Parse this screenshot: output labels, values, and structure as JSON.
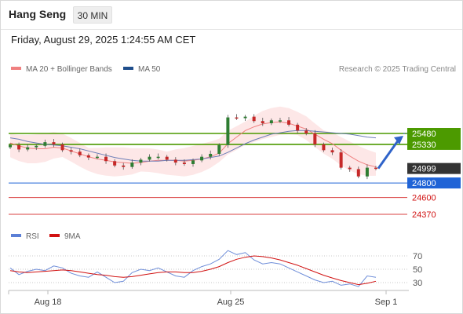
{
  "header": {
    "title": "Hang Seng",
    "timeframe": "30 MIN",
    "datetime": "Friday, August 29, 2025 1:24:55 AM CET"
  },
  "legend": {
    "items": [
      {
        "label": "MA 20 + Bollinger Bands",
        "color": "#f08080"
      },
      {
        "label": "MA 50",
        "color": "#1f4e8c"
      }
    ],
    "copyright": "Research © 2025 Trading Central"
  },
  "rsi_legend": {
    "items": [
      {
        "label": "RSI",
        "color": "#5b7fd6"
      },
      {
        "label": "9MA",
        "color": "#d11111"
      }
    ]
  },
  "x_axis": {
    "labels": [
      "Aug 18",
      "Aug 25",
      "Sep 1"
    ]
  },
  "chart_data": [
    {
      "type": "line",
      "title": "",
      "price_levels": [
        {
          "value": 25480,
          "label": "25480",
          "color": "#4c9a00",
          "kind": "resistance"
        },
        {
          "value": 25330,
          "label": "25330",
          "color": "#4c9a00",
          "kind": "resistance"
        },
        {
          "value": 24999,
          "label": "24999",
          "color": "#333333",
          "kind": "last"
        },
        {
          "value": 24800,
          "label": "24800",
          "color": "#1f63d6",
          "kind": "pivot"
        },
        {
          "value": 24600,
          "label": "24600",
          "color": "#d11111",
          "kind": "support"
        },
        {
          "value": 24370,
          "label": "24370",
          "color": "#d11111",
          "kind": "support"
        }
      ],
      "series": [
        {
          "name": "Price",
          "values": [
            25320,
            25260,
            25290,
            25310,
            25360,
            25330,
            25250,
            25230,
            25180,
            25150,
            25160,
            25100,
            25040,
            25020,
            25080,
            25120,
            25160,
            25160,
            25120,
            25080,
            25060,
            25110,
            25160,
            25200,
            25320,
            25700,
            25690,
            25710,
            25650,
            25620,
            25660,
            25660,
            25600,
            25520,
            25480,
            25330,
            25250,
            25220,
            25010,
            24990,
            24890,
            25010,
            24999
          ]
        },
        {
          "name": "MA 20",
          "values": [
            25350,
            25310,
            25280,
            25270,
            25270,
            25290,
            25280,
            25240,
            25200,
            25160,
            25130,
            25110,
            25090,
            25080,
            25070,
            25080,
            25100,
            25110,
            25110,
            25110,
            25100,
            25110,
            25130,
            25160,
            25210,
            25340,
            25430,
            25520,
            25570,
            25610,
            25630,
            25640,
            25620,
            25580,
            25540,
            25470,
            25400,
            25340,
            25250,
            25170,
            25100,
            25050,
            25020
          ]
        },
        {
          "name": "MA 50",
          "values": [
            25420,
            25400,
            25370,
            25350,
            25330,
            25320,
            25310,
            25290,
            25270,
            25240,
            25210,
            25180,
            25150,
            25130,
            25110,
            25100,
            25100,
            25100,
            25110,
            25110,
            25110,
            25120,
            25130,
            25150,
            25170,
            25220,
            25280,
            25340,
            25390,
            25430,
            25470,
            25490,
            25510,
            25520,
            25520,
            25510,
            25500,
            25490,
            25480,
            25470,
            25450,
            25430,
            25420
          ]
        }
      ],
      "forecast_target": 25480
    },
    {
      "type": "line",
      "title": "",
      "ylim": [
        20,
        85
      ],
      "y_ticks": [
        70,
        50,
        30
      ],
      "series": [
        {
          "name": "RSI",
          "values": [
            52,
            42,
            47,
            50,
            48,
            55,
            52,
            44,
            40,
            38,
            46,
            38,
            30,
            32,
            45,
            50,
            48,
            52,
            46,
            40,
            38,
            48,
            54,
            58,
            65,
            78,
            72,
            75,
            64,
            58,
            60,
            58,
            52,
            46,
            40,
            34,
            30,
            32,
            26,
            28,
            24,
            40,
            38
          ]
        },
        {
          "name": "9MA",
          "values": [
            48,
            46,
            45,
            46,
            47,
            48,
            49,
            48,
            46,
            44,
            42,
            41,
            39,
            38,
            39,
            41,
            43,
            45,
            46,
            46,
            45,
            45,
            47,
            50,
            54,
            60,
            65,
            68,
            70,
            69,
            67,
            64,
            60,
            56,
            51,
            46,
            41,
            37,
            33,
            30,
            27,
            29,
            32
          ]
        }
      ]
    }
  ]
}
